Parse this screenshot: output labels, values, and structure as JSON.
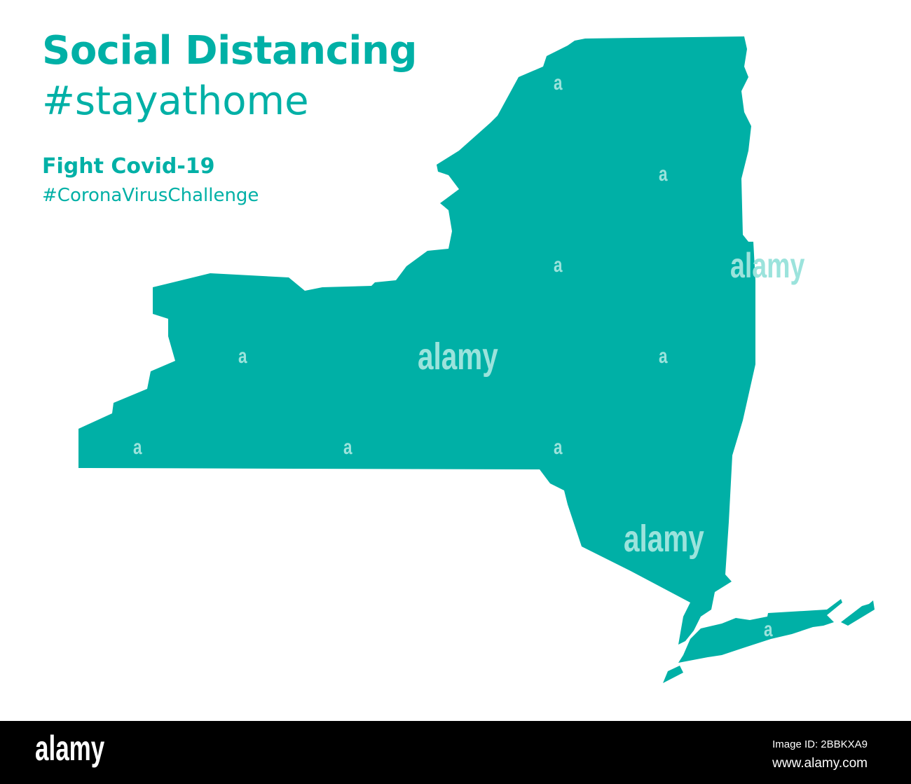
{
  "heading": {
    "title": "Social Distancing",
    "hashtag": "#stayathome",
    "subtitle": "Fight Covid-19",
    "subtitle_hashtag": "#CoronaVirusChallenge"
  },
  "map": {
    "region": "New York State",
    "fill_color": "#00b0a6"
  },
  "watermark": {
    "text": "alamy",
    "small": "a"
  },
  "footer": {
    "logo": "alamy",
    "image_id": "Image ID: 2BBKXA9",
    "website": "www.alamy.com"
  }
}
